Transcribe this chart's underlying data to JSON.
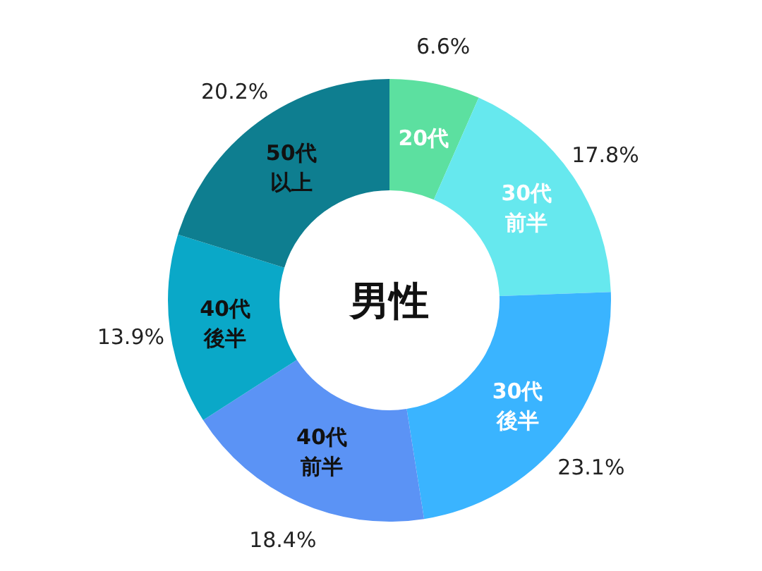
{
  "chart_data": {
    "type": "donut",
    "title": "男性",
    "categories": [
      "20代",
      "30代前半",
      "30代後半",
      "40代前半",
      "40代後半",
      "50代以上"
    ],
    "values": [
      6.6,
      17.8,
      23.1,
      18.4,
      13.9,
      20.2
    ],
    "colors": [
      "#5ce0a0",
      "#66e8ee",
      "#3ab4ff",
      "#5b93f5",
      "#0aa8c8",
      "#0e7e90"
    ],
    "value_labels": [
      "6.6%",
      "17.8%",
      "23.1%",
      "18.4%",
      "13.9%",
      "20.2%"
    ]
  }
}
